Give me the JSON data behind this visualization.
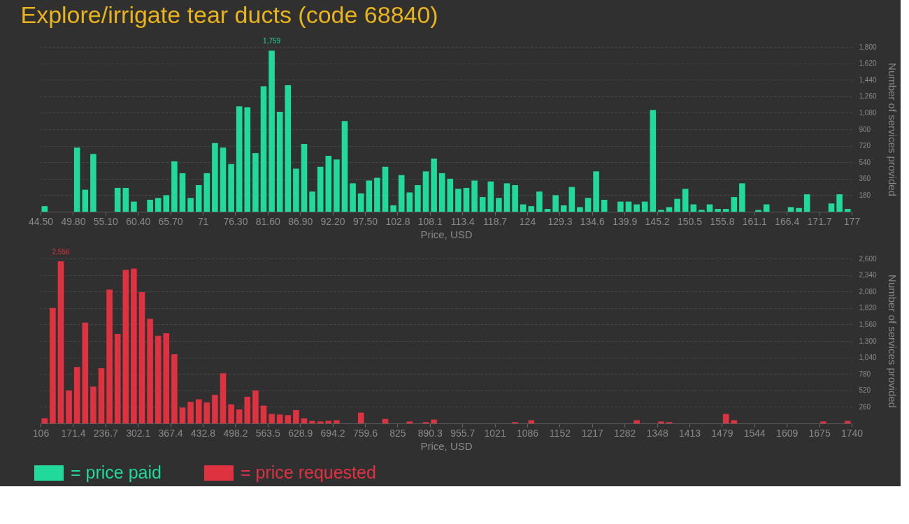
{
  "chart_data": [
    {
      "type": "histogram",
      "title": "Explore/irrigate tear ducts (code 68840)",
      "xlabel": "Price, USD",
      "ylabel": "Number of services provided",
      "grid": "y",
      "legend": "bottom left",
      "bins": [
        44.5,
        45.825,
        47.15,
        48.475,
        49.8,
        51.125,
        52.45,
        53.775,
        55.1,
        56.425,
        57.75,
        59.075,
        60.4,
        61.725,
        63.05,
        64.375,
        65.7,
        67.025,
        68.35,
        69.675,
        71,
        72.325,
        73.65,
        74.975,
        76.3,
        77.625,
        78.95,
        80.275,
        81.6,
        82.925,
        84.25,
        85.575,
        86.9,
        88.225,
        89.55,
        90.875,
        92.2,
        93.525,
        94.85,
        96.175,
        97.5,
        98.825,
        100.15,
        101.475,
        102.8,
        104.125,
        105.45,
        106.775,
        108.1,
        109.425,
        110.75,
        112.075,
        113.4,
        114.725,
        116.05,
        117.375,
        118.7,
        120.025,
        121.35,
        122.675,
        124,
        125.325,
        126.65,
        127.975,
        129.3,
        130.625,
        131.95,
        133.275,
        134.6,
        135.925,
        137.25,
        138.575,
        139.9,
        141.225,
        142.55,
        143.875,
        145.2,
        146.525,
        147.85,
        149.175,
        150.5,
        151.825,
        153.15,
        154.475,
        155.8,
        157.125,
        158.45,
        159.775,
        161.1,
        162.425,
        163.75,
        165.075,
        166.4,
        167.725,
        169.05,
        170.375,
        171.7,
        173.025,
        174.35,
        175.675,
        177
      ],
      "series": [
        {
          "name": "= price paid",
          "color": "#21d99b",
          "values": [
            60,
            0,
            0,
            0,
            700,
            240,
            630,
            0,
            0,
            260,
            260,
            110,
            0,
            130,
            150,
            180,
            550,
            420,
            150,
            290,
            420,
            750,
            700,
            520,
            1150,
            1140,
            640,
            1370,
            1759,
            1090,
            1380,
            470,
            740,
            220,
            490,
            610,
            570,
            990,
            310,
            200,
            340,
            370,
            490,
            70,
            400,
            210,
            290,
            440,
            580,
            420,
            360,
            250,
            260,
            340,
            160,
            330,
            150,
            310,
            290,
            80,
            60,
            220,
            30,
            180,
            70,
            270,
            50,
            150,
            440,
            130,
            0,
            110,
            110,
            80,
            110,
            1110,
            20,
            50,
            140,
            250,
            80,
            20,
            80,
            30,
            30,
            160,
            310,
            0,
            20,
            80,
            0,
            0,
            50,
            40,
            190,
            0,
            0,
            90,
            190,
            30
          ],
          "value_labels": [
            null,
            null,
            null,
            null,
            null,
            null,
            null,
            null,
            null,
            null,
            null,
            null,
            null,
            null,
            null,
            null,
            null,
            null,
            null,
            null,
            null,
            null,
            null,
            null,
            null,
            null,
            null,
            null,
            "1,759",
            null,
            null,
            null,
            null,
            null,
            null,
            null,
            null,
            null,
            null,
            null,
            null,
            null,
            null,
            null,
            null,
            null,
            null,
            null,
            null,
            null,
            null,
            null,
            null,
            null,
            null,
            null,
            null,
            null,
            null,
            null,
            null,
            null,
            null,
            null,
            null,
            null,
            null,
            null,
            null,
            null,
            null,
            null,
            null,
            null,
            null,
            null,
            null,
            null,
            null,
            null,
            null,
            null,
            null,
            null,
            null,
            null,
            null,
            null,
            null,
            null,
            null,
            null,
            null,
            null,
            null,
            null,
            null,
            null,
            null,
            null
          ]
        }
      ],
      "xlim": [
        44.5,
        177
      ],
      "xticks": [
        {
          "value": 44.5,
          "label": "44.50"
        },
        {
          "value": 49.8,
          "label": "49.80"
        },
        {
          "value": 55.1,
          "label": "55.10"
        },
        {
          "value": 60.4,
          "label": "60.40"
        },
        {
          "value": 65.7,
          "label": "65.70"
        },
        71,
        {
          "value": 76.3,
          "label": "76.30"
        },
        {
          "value": 81.6,
          "label": "81.60"
        },
        {
          "value": 86.9,
          "label": "86.90"
        },
        {
          "value": 92.2,
          "label": "92.20"
        },
        {
          "value": 97.5,
          "label": "97.50"
        },
        102.8,
        108.1,
        113.4,
        118.7,
        124,
        129.3,
        134.6,
        139.9,
        145.2,
        150.5,
        155.8,
        161.1,
        166.4,
        171.7,
        177
      ],
      "ylim": [
        0,
        1800
      ],
      "yticks": [
        180,
        360,
        540,
        720,
        900,
        {
          "value": 1080,
          "label": "1,080"
        },
        {
          "value": 1260,
          "label": "1,260"
        },
        {
          "value": 1440,
          "label": "1,440"
        },
        {
          "value": 1620,
          "label": "1,620"
        },
        {
          "value": 1800,
          "label": "1,800"
        }
      ]
    },
    {
      "type": "histogram",
      "xlabel": "Price, USD",
      "ylabel": "Number of services provided",
      "grid": "y",
      "legend": "bottom left",
      "bins": [
        106,
        122.34,
        138.68,
        155.02,
        171.36,
        187.7,
        204.04,
        220.38,
        236.72,
        253.06,
        269.4,
        285.74,
        302.08,
        318.42,
        334.76,
        351.1,
        367.44,
        383.78,
        400.12,
        416.46,
        432.8,
        449.14,
        465.48,
        481.82,
        498.16,
        514.5,
        530.84,
        547.18,
        563.52,
        579.86,
        596.2,
        612.54,
        628.88,
        645.22,
        661.56,
        677.9,
        694.24,
        710.58,
        726.92,
        743.26,
        759.6,
        775.94,
        792.28,
        808.62,
        824.96,
        841.3,
        857.64,
        873.98,
        890.32,
        906.66,
        923,
        939.34,
        955.68,
        972.02,
        988.36,
        1004.7,
        1021.04,
        1037.38,
        1053.72,
        1070.06,
        1086.4,
        1102.74,
        1119.08,
        1135.42,
        1151.76,
        1168.1,
        1184.44,
        1200.78,
        1217.12,
        1233.46,
        1249.8,
        1266.14,
        1282.48,
        1298.82,
        1315.16,
        1331.5,
        1347.84,
        1364.18,
        1380.52,
        1396.86,
        1413.2,
        1429.54,
        1445.88,
        1462.22,
        1478.56,
        1494.9,
        1511.24,
        1527.58,
        1543.92,
        1560.26,
        1576.6,
        1592.94,
        1609.28,
        1625.62,
        1641.96,
        1658.3,
        1674.64,
        1690.98,
        1707.32,
        1723.66,
        1740
      ],
      "series": [
        {
          "name": "= price requested",
          "color": "#df3241",
          "values": [
            80,
            1820,
            2556,
            520,
            890,
            1590,
            580,
            870,
            2110,
            1410,
            2420,
            2440,
            2070,
            1650,
            1380,
            1420,
            1090,
            250,
            340,
            380,
            330,
            450,
            790,
            300,
            220,
            420,
            520,
            280,
            150,
            140,
            130,
            210,
            80,
            40,
            30,
            40,
            50,
            0,
            0,
            170,
            0,
            0,
            70,
            0,
            0,
            30,
            0,
            20,
            60,
            0,
            0,
            0,
            0,
            0,
            0,
            0,
            0,
            0,
            20,
            0,
            50,
            0,
            0,
            0,
            0,
            0,
            0,
            0,
            0,
            0,
            0,
            0,
            0,
            50,
            0,
            0,
            30,
            20,
            0,
            0,
            0,
            0,
            0,
            0,
            150,
            50,
            0,
            0,
            0,
            0,
            0,
            0,
            0,
            0,
            0,
            0,
            30,
            0,
            0,
            40
          ],
          "value_labels": [
            null,
            null,
            "2,556",
            null,
            null,
            null,
            null,
            null,
            null,
            null,
            null,
            null,
            null,
            null,
            null,
            null,
            null,
            null,
            null,
            null,
            null,
            null,
            null,
            null,
            null,
            null,
            null,
            null,
            null,
            null,
            null,
            null,
            null,
            null,
            null,
            null,
            null,
            null,
            null,
            null,
            null,
            null,
            null,
            null,
            null,
            null,
            null,
            null,
            null,
            null,
            null,
            null,
            null,
            null,
            null,
            null,
            null,
            null,
            null,
            null,
            null,
            null,
            null,
            null,
            null,
            null,
            null,
            null,
            null,
            null,
            null,
            null,
            null,
            null,
            null,
            null,
            null,
            null,
            null,
            null,
            null,
            null,
            null,
            null,
            null,
            null,
            null,
            null,
            null,
            null,
            null,
            null,
            null,
            null,
            null,
            null,
            null,
            null,
            null,
            null
          ]
        }
      ],
      "xlim": [
        106,
        1740
      ],
      "xticks": [
        106,
        {
          "value": 171.36,
          "label": "171.4"
        },
        {
          "value": 236.72,
          "label": "236.7"
        },
        {
          "value": 302.08,
          "label": "302.1"
        },
        {
          "value": 367.44,
          "label": "367.4"
        },
        432.8,
        {
          "value": 498.16,
          "label": "498.2"
        },
        {
          "value": 563.52,
          "label": "563.5"
        },
        {
          "value": 628.88,
          "label": "628.9"
        },
        {
          "value": 694.24,
          "label": "694.2"
        },
        759.6,
        {
          "value": 824.96,
          "label": "825"
        },
        {
          "value": 890.32,
          "label": "890.3"
        },
        {
          "value": 955.68,
          "label": "955.7"
        },
        {
          "value": 1021.04,
          "label": "1021"
        },
        {
          "value": 1086.4,
          "label": "1086"
        },
        {
          "value": 1151.76,
          "label": "1152"
        },
        {
          "value": 1217.12,
          "label": "1217"
        },
        {
          "value": 1282.48,
          "label": "1282"
        },
        {
          "value": 1347.84,
          "label": "1348"
        },
        {
          "value": 1413.2,
          "label": "1413"
        },
        {
          "value": 1478.56,
          "label": "1479"
        },
        {
          "value": 1543.92,
          "label": "1544"
        },
        {
          "value": 1609.28,
          "label": "1609"
        },
        {
          "value": 1674.64,
          "label": "1675"
        },
        1740
      ],
      "ylim": [
        0,
        2600
      ],
      "yticks": [
        260,
        520,
        780,
        {
          "value": 1040,
          "label": "1,040"
        },
        {
          "value": 1300,
          "label": "1,300"
        },
        {
          "value": 1560,
          "label": "1,560"
        },
        {
          "value": 1820,
          "label": "1,820"
        },
        {
          "value": 2080,
          "label": "2,080"
        },
        {
          "value": 2340,
          "label": "2,340"
        },
        {
          "value": 2600,
          "label": "2,600"
        }
      ]
    }
  ]
}
